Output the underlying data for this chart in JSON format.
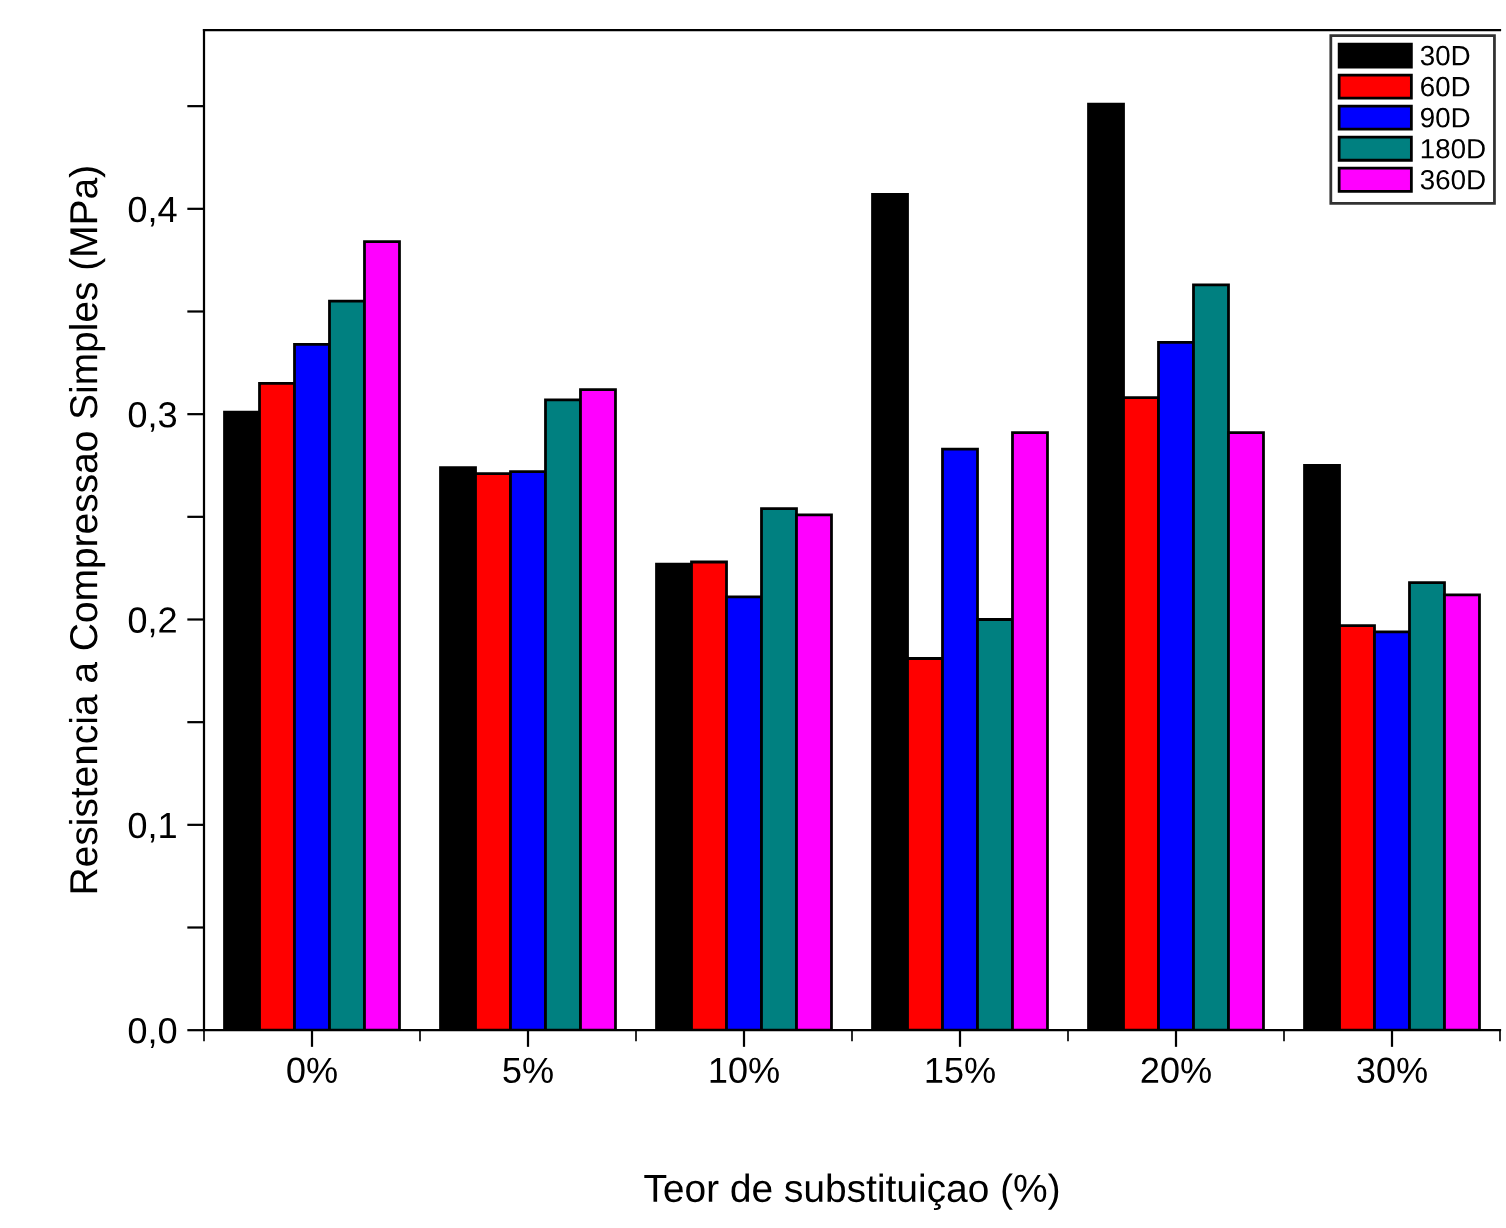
{
  "chart_data": {
    "type": "bar",
    "xlabel": "Teor de substituiçao (%)",
    "ylabel": "Resistencia a Compressao Simples (MPa)",
    "categories": [
      "0%",
      "5%",
      "10%",
      "15%",
      "20%",
      "30%"
    ],
    "series": [
      {
        "name": "30D",
        "color": "#000000",
        "values": [
          0.301,
          0.274,
          0.227,
          0.407,
          0.451,
          0.275
        ]
      },
      {
        "name": "60D",
        "color": "#ff0000",
        "values": [
          0.315,
          0.271,
          0.228,
          0.181,
          0.308,
          0.197
        ]
      },
      {
        "name": "90D",
        "color": "#0000ff",
        "values": [
          0.334,
          0.272,
          0.211,
          0.283,
          0.335,
          0.194
        ]
      },
      {
        "name": "180D",
        "color": "#008080",
        "values": [
          0.355,
          0.307,
          0.254,
          0.2,
          0.363,
          0.218
        ]
      },
      {
        "name": "360D",
        "color": "#ff00ff",
        "values": [
          0.384,
          0.312,
          0.251,
          0.291,
          0.291,
          0.212
        ]
      }
    ],
    "ylim": [
      0,
      0.487
    ],
    "yticks": [
      {
        "value": 0,
        "label": "0,0"
      },
      {
        "value": 0.05,
        "label": null
      },
      {
        "value": 0.1,
        "label": "0,1"
      },
      {
        "value": 0.15,
        "label": null
      },
      {
        "value": 0.2,
        "label": "0,2"
      },
      {
        "value": 0.25,
        "label": null
      },
      {
        "value": 0.3,
        "label": "0,3"
      },
      {
        "value": 0.35,
        "label": null
      },
      {
        "value": 0.4,
        "label": "0,4"
      },
      {
        "value": 0.45,
        "label": null
      }
    ],
    "legend": "top right",
    "grid": false
  }
}
